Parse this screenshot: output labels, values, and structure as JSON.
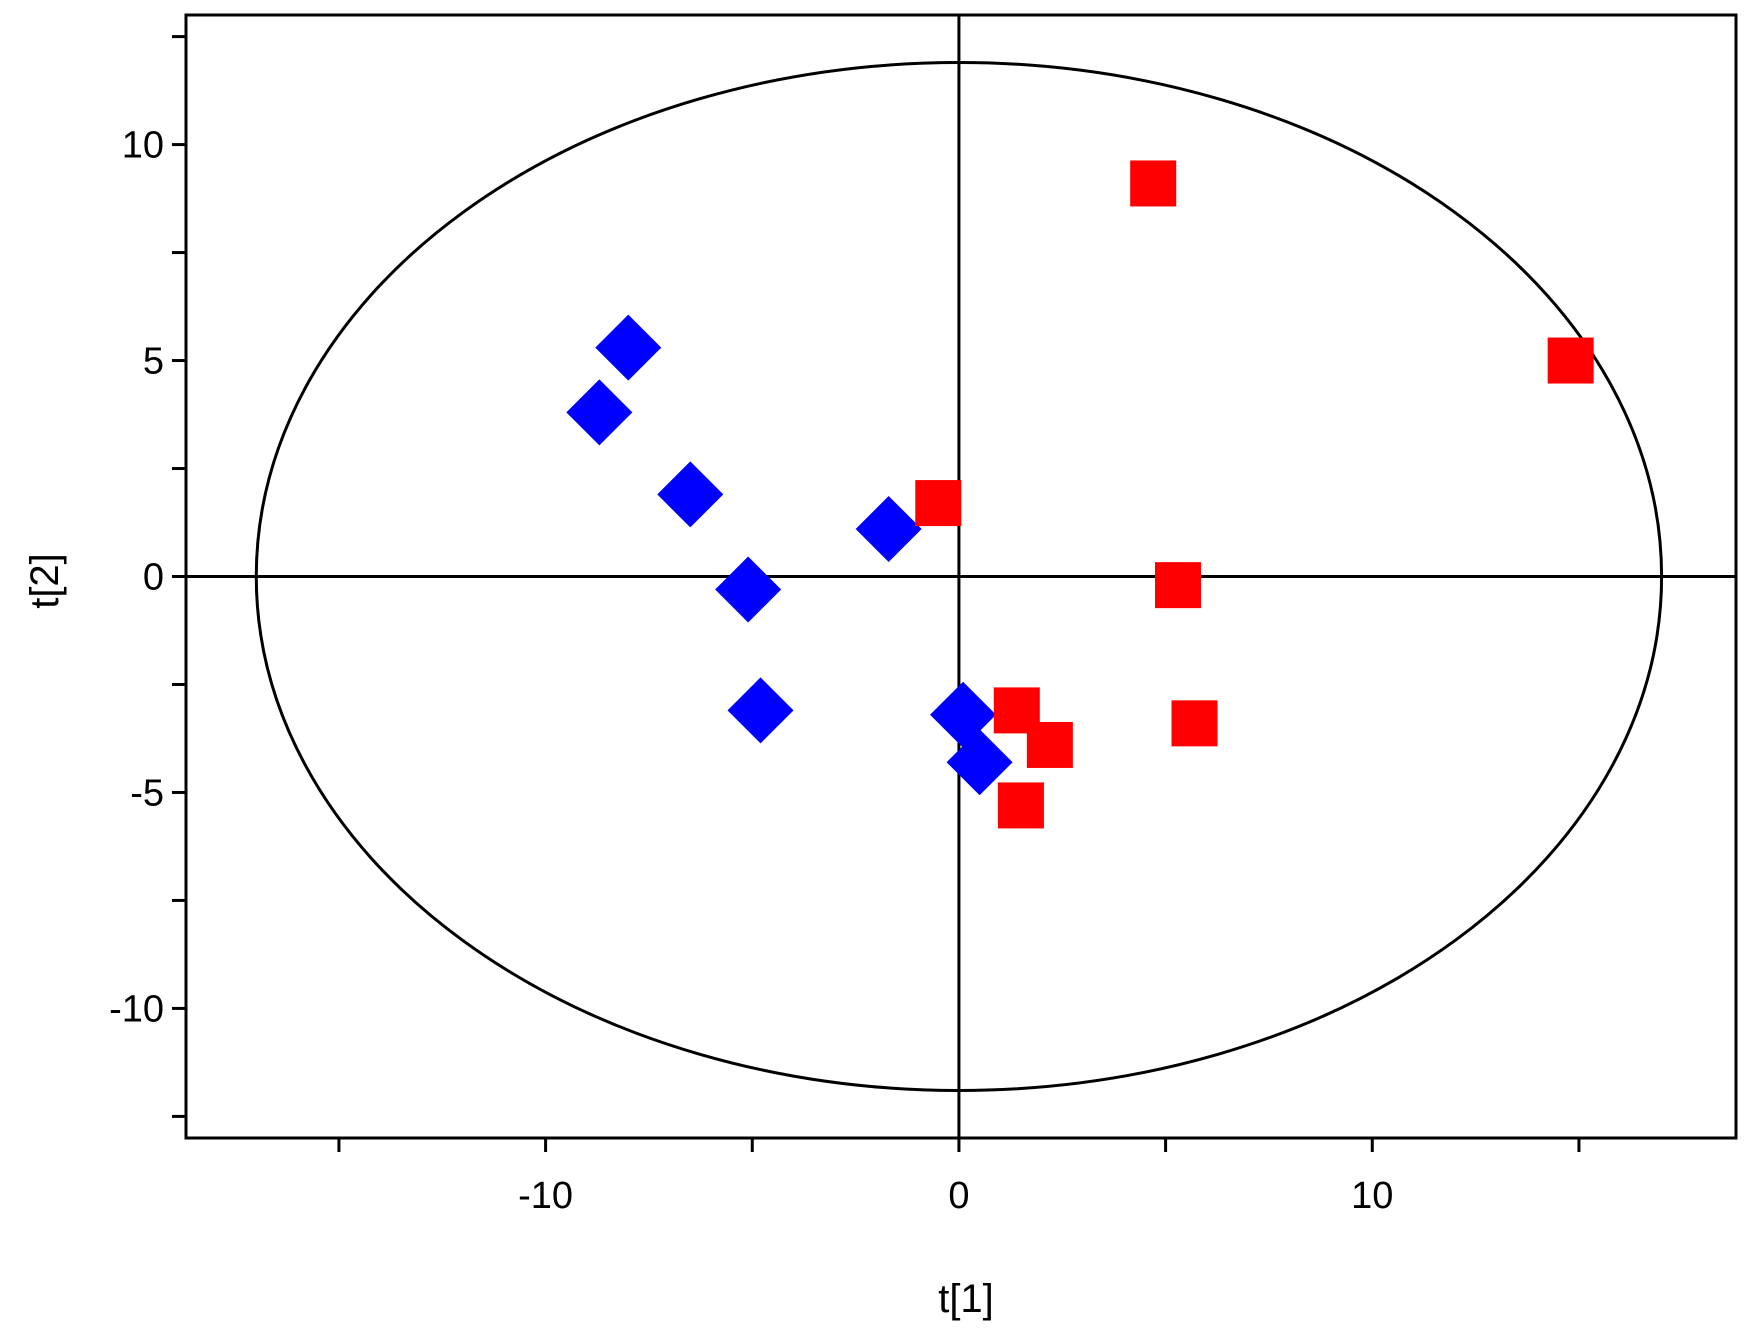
{
  "chart_data": {
    "type": "scatter",
    "xlabel": "t[1]",
    "ylabel": "t[2]",
    "xlim": [
      -18.7,
      18.8
    ],
    "ylim": [
      -13,
      13
    ],
    "x_ticks": [
      -10,
      0,
      10
    ],
    "y_ticks": [
      -10,
      -5,
      0,
      5,
      10
    ],
    "x_minor_ticks": [
      -15,
      -10,
      -5,
      0,
      5,
      10,
      15
    ],
    "y_minor_ticks": [
      -12.5,
      -10,
      -7.5,
      -5,
      -2.5,
      0,
      2.5,
      5,
      7.5,
      10,
      12.5
    ],
    "grid": false,
    "reference_lines": {
      "x": 0,
      "y": 0
    },
    "confidence_ellipse": {
      "center": [
        0,
        0
      ],
      "rx": 17,
      "ry": 11.9
    },
    "series": [
      {
        "marker": "diamond",
        "color": "#0000ff",
        "points": [
          {
            "x": -8.0,
            "y": 5.3
          },
          {
            "x": -8.7,
            "y": 3.8
          },
          {
            "x": -6.5,
            "y": 1.9
          },
          {
            "x": -1.7,
            "y": 1.1
          },
          {
            "x": -5.1,
            "y": -0.3
          },
          {
            "x": -4.8,
            "y": -3.1
          },
          {
            "x": 0.1,
            "y": -3.2
          },
          {
            "x": 0.5,
            "y": -4.3
          }
        ]
      },
      {
        "marker": "square",
        "color": "#ff0000",
        "points": [
          {
            "x": 4.7,
            "y": 9.1
          },
          {
            "x": 14.8,
            "y": 5.0
          },
          {
            "x": -0.5,
            "y": 1.7
          },
          {
            "x": 5.3,
            "y": -0.2
          },
          {
            "x": 1.4,
            "y": -3.1
          },
          {
            "x": 2.2,
            "y": -3.9
          },
          {
            "x": 5.7,
            "y": -3.4
          },
          {
            "x": 1.5,
            "y": -5.3
          }
        ]
      }
    ]
  }
}
